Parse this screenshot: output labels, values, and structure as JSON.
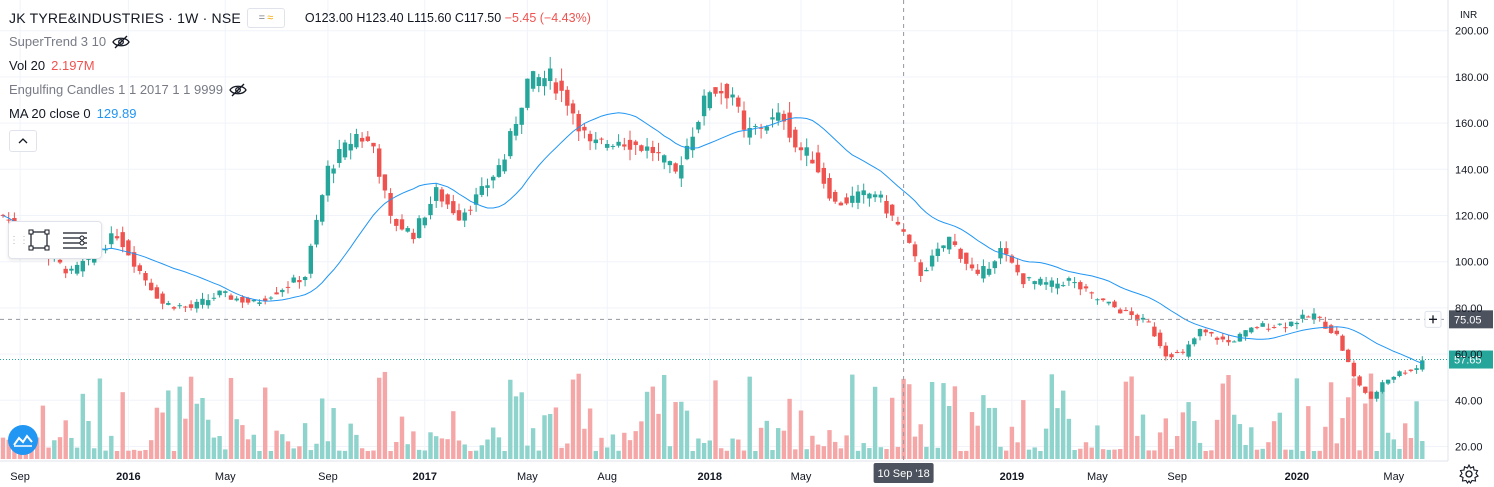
{
  "header": {
    "title": "JK TYRE&INDUSTRIES · 1W · NSE",
    "badge_label": "≈",
    "ohlc": {
      "o": "O123.00",
      "h": "H123.40",
      "l": "L115.60",
      "c": "C117.50",
      "change": "−5.45 (−4.43%)"
    }
  },
  "indicators": [
    {
      "label": "SuperTrend 3 10",
      "value": "",
      "hidden": true
    },
    {
      "label": "Vol 20",
      "value": "2.197M",
      "hidden": false
    },
    {
      "label": "Engulfing Candles 1 1 2017 1 1 9999",
      "value": "",
      "hidden": true
    },
    {
      "label": "MA 20 close 0",
      "value": "129.89",
      "hidden": false
    }
  ],
  "icons": [
    "eye-off-icon",
    "chevron-up-icon",
    "rectangle-icon",
    "lines-icon",
    "tradingview-logo-icon",
    "settings-icon",
    "plus-icon"
  ],
  "colors": {
    "up": "#26a69a",
    "down": "#ef5350",
    "vol_up": "#8fd3cd",
    "vol_down": "#f5a7a7",
    "ma": "#2196f3",
    "grid": "#f0f3fa",
    "text": "#131722",
    "muted": "#787b86"
  },
  "chart_data": {
    "type": "candlestick",
    "currency": "INR",
    "ylim": [
      14,
      202
    ],
    "y_ticks": [
      20,
      40,
      60,
      80,
      100,
      120,
      140,
      160,
      180,
      200
    ],
    "y_tick_labels": [
      "20.00",
      "40.00",
      "60.00",
      "80.00",
      "100.00",
      "120.00",
      "140.00",
      "160.00",
      "180.00",
      "200.00"
    ],
    "x_tick_labels": [
      "Sep",
      "2016",
      "May",
      "Sep",
      "2017",
      "May",
      "Aug",
      "2018",
      "May",
      "2019",
      "May",
      "Sep",
      "2020",
      "May"
    ],
    "x_tick_index": [
      3,
      22,
      39,
      57,
      74,
      92,
      106,
      124,
      140,
      177,
      192,
      206,
      227,
      244
    ],
    "crosshair": {
      "label": "10 Sep '18",
      "index": 158,
      "price_label": "75.05",
      "price": 75.05
    },
    "last_price": {
      "label": "57.65",
      "value": 57.65
    },
    "ma_label": "MA 20",
    "volume_series_name": "Vol 20",
    "anchors": [
      [
        0,
        120
      ],
      [
        8,
        102
      ],
      [
        12,
        95
      ],
      [
        20,
        112
      ],
      [
        24,
        96
      ],
      [
        28,
        82
      ],
      [
        33,
        80
      ],
      [
        38,
        86
      ],
      [
        44,
        82
      ],
      [
        50,
        90
      ],
      [
        53,
        94
      ],
      [
        57,
        140
      ],
      [
        62,
        155
      ],
      [
        65,
        150
      ],
      [
        68,
        118
      ],
      [
        72,
        112
      ],
      [
        76,
        130
      ],
      [
        80,
        120
      ],
      [
        84,
        130
      ],
      [
        88,
        145
      ],
      [
        92,
        178
      ],
      [
        96,
        180
      ],
      [
        99,
        170
      ],
      [
        103,
        150
      ],
      [
        108,
        153
      ],
      [
        114,
        148
      ],
      [
        118,
        138
      ],
      [
        124,
        175
      ],
      [
        128,
        173
      ],
      [
        130,
        155
      ],
      [
        134,
        160
      ],
      [
        137,
        163
      ],
      [
        139,
        150
      ],
      [
        142,
        145
      ],
      [
        146,
        125
      ],
      [
        150,
        128
      ],
      [
        153,
        130
      ],
      [
        158,
        112
      ],
      [
        161,
        95
      ],
      [
        166,
        110
      ],
      [
        171,
        93
      ],
      [
        175,
        105
      ],
      [
        179,
        92
      ],
      [
        184,
        90
      ],
      [
        187,
        92
      ],
      [
        191,
        85
      ],
      [
        196,
        79
      ],
      [
        201,
        73
      ],
      [
        204,
        60
      ],
      [
        207,
        60
      ],
      [
        210,
        70
      ],
      [
        215,
        65
      ],
      [
        220,
        72
      ],
      [
        225,
        73
      ],
      [
        230,
        77
      ],
      [
        234,
        68
      ],
      [
        237,
        50
      ],
      [
        240,
        40
      ],
      [
        242,
        48
      ],
      [
        245,
        52
      ],
      [
        248,
        54
      ],
      [
        249,
        57.65
      ]
    ]
  }
}
